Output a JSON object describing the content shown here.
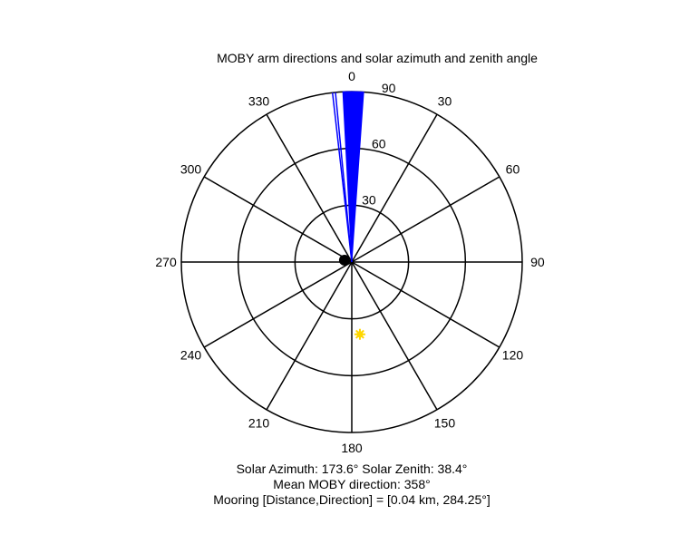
{
  "chart_data": {
    "type": "polar",
    "title": "MOBY arm directions and solar azimuth and zenith angle",
    "theta_direction": "clockwise",
    "theta_zero": "top",
    "r_range": [
      0,
      90
    ],
    "radial_ticks": [
      "30",
      "60",
      "90"
    ],
    "radial_tick_values": [
      30,
      60,
      90
    ],
    "angle_ticks": [
      "0",
      "30",
      "60",
      "90",
      "120",
      "150",
      "180",
      "210",
      "240",
      "270",
      "300",
      "330"
    ],
    "angle_tick_values": [
      0,
      30,
      60,
      90,
      120,
      150,
      180,
      210,
      240,
      270,
      300,
      330
    ],
    "grid": true,
    "moby_arm_directions": {
      "color": "#0000ff",
      "r": 90,
      "sector_deg": [
        357,
        4
      ],
      "extra_lines_deg": [
        353.5,
        354.5
      ]
    },
    "sun": {
      "azimuth_deg": 173.6,
      "zenith_deg": 38.4,
      "color": "#ffd700"
    },
    "mooring": {
      "direction_deg": 284.25,
      "distance_km": 0.04,
      "color": "#000000"
    }
  },
  "captions": {
    "line1": "Solar Azimuth: 173.6°   Solar Zenith: 38.4°",
    "line2": "Mean MOBY direction: 358°",
    "line3": "Mooring [Distance,Direction] = [0.04 km, 284.25°]"
  }
}
